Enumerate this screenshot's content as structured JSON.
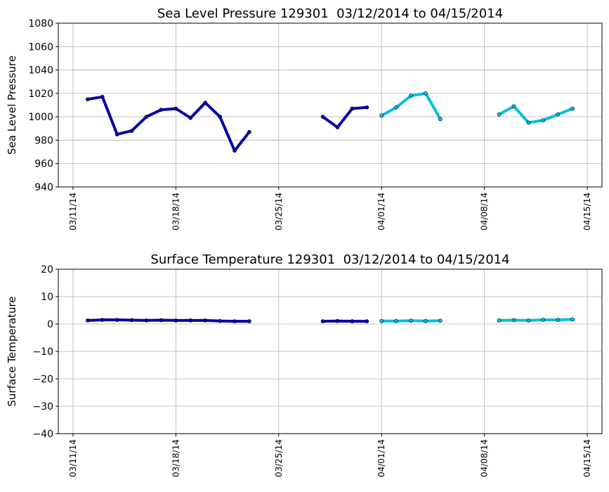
{
  "chart_data": [
    {
      "type": "line",
      "title": "Sea Level Pressure 129301  03/12/2014 to 04/15/2014",
      "y_label": "Sea Level Pressure",
      "x": [
        "2014-03-12",
        "2014-03-13",
        "2014-03-14",
        "2014-03-15",
        "2014-03-16",
        "2014-03-17",
        "2014-03-18",
        "2014-03-19",
        "2014-03-20",
        "2014-03-21",
        "2014-03-22",
        "2014-03-23",
        "2014-03-24",
        "2014-03-25",
        "2014-03-26",
        "2014-03-27",
        "2014-03-28",
        "2014-03-29",
        "2014-03-30",
        "2014-03-31",
        "2014-04-01",
        "2014-04-02",
        "2014-04-03",
        "2014-04-04",
        "2014-04-05",
        "2014-04-06",
        "2014-04-07",
        "2014-04-08",
        "2014-04-09",
        "2014-04-10",
        "2014-04-11",
        "2014-04-12",
        "2014-04-13",
        "2014-04-14"
      ],
      "series": [
        {
          "color": "#0000aa",
          "values": [
            1015,
            1017,
            985,
            988,
            1000,
            1006,
            1007,
            999,
            1012,
            1000,
            971,
            987,
            null,
            null,
            null,
            null,
            1000,
            991,
            1007,
            1008,
            null,
            null,
            null,
            null,
            null,
            null,
            null,
            null,
            null,
            null,
            null,
            null,
            null,
            null
          ]
        },
        {
          "color": "#00bfe0",
          "values": [
            null,
            null,
            null,
            null,
            null,
            null,
            null,
            null,
            null,
            null,
            null,
            null,
            null,
            null,
            null,
            null,
            null,
            null,
            null,
            null,
            1001,
            1008,
            1018,
            1020,
            998,
            null,
            null,
            null,
            1002,
            1009,
            995,
            997,
            1002,
            1007
          ]
        }
      ],
      "xlim": [
        "2014-03-10",
        "2014-04-16"
      ],
      "xticks": [
        {
          "value": "2014-03-11",
          "label": "03/11/14"
        },
        {
          "value": "2014-03-18",
          "label": "03/18/14"
        },
        {
          "value": "2014-03-25",
          "label": "03/25/14"
        },
        {
          "value": "2014-04-01",
          "label": "04/01/14"
        },
        {
          "value": "2014-04-08",
          "label": "04/08/14"
        },
        {
          "value": "2014-04-15",
          "label": "04/15/14"
        }
      ],
      "ylim": [
        940,
        1080
      ],
      "yticks": [
        940,
        960,
        980,
        1000,
        1020,
        1040,
        1060,
        1080
      ],
      "grid": true
    },
    {
      "type": "line",
      "title": "Surface Temperature 129301  03/12/2014 to 04/15/2014",
      "y_label": "Surface Temperature",
      "x": [
        "2014-03-12",
        "2014-03-13",
        "2014-03-14",
        "2014-03-15",
        "2014-03-16",
        "2014-03-17",
        "2014-03-18",
        "2014-03-19",
        "2014-03-20",
        "2014-03-21",
        "2014-03-22",
        "2014-03-23",
        "2014-03-24",
        "2014-03-25",
        "2014-03-26",
        "2014-03-27",
        "2014-03-28",
        "2014-03-29",
        "2014-03-30",
        "2014-03-31",
        "2014-04-01",
        "2014-04-02",
        "2014-04-03",
        "2014-04-04",
        "2014-04-05",
        "2014-04-06",
        "2014-04-07",
        "2014-04-08",
        "2014-04-09",
        "2014-04-10",
        "2014-04-11",
        "2014-04-12",
        "2014-04-13",
        "2014-04-14"
      ],
      "series": [
        {
          "color": "#0000aa",
          "values": [
            1.3,
            1.5,
            1.5,
            1.4,
            1.3,
            1.4,
            1.3,
            1.3,
            1.3,
            1.1,
            1.0,
            1.0,
            null,
            null,
            null,
            null,
            1.0,
            1.1,
            1.0,
            1.0,
            null,
            null,
            null,
            null,
            null,
            null,
            null,
            null,
            null,
            null,
            null,
            null,
            null,
            null
          ]
        },
        {
          "color": "#00bfe0",
          "values": [
            null,
            null,
            null,
            null,
            null,
            null,
            null,
            null,
            null,
            null,
            null,
            null,
            null,
            null,
            null,
            null,
            null,
            null,
            null,
            null,
            1.1,
            1.1,
            1.2,
            1.1,
            1.2,
            null,
            null,
            null,
            1.3,
            1.4,
            1.3,
            1.5,
            1.5,
            1.7
          ]
        }
      ],
      "xlim": [
        "2014-03-10",
        "2014-04-16"
      ],
      "xticks": [
        {
          "value": "2014-03-11",
          "label": "03/11/14"
        },
        {
          "value": "2014-03-18",
          "label": "03/18/14"
        },
        {
          "value": "2014-03-25",
          "label": "03/25/14"
        },
        {
          "value": "2014-04-01",
          "label": "04/01/14"
        },
        {
          "value": "2014-04-08",
          "label": "04/08/14"
        },
        {
          "value": "2014-04-15",
          "label": "04/15/14"
        }
      ],
      "ylim": [
        -40,
        20
      ],
      "yticks": [
        {
          "value": -40,
          "label": "−40"
        },
        {
          "value": -30,
          "label": "−30"
        },
        {
          "value": -20,
          "label": "−20"
        },
        {
          "value": -10,
          "label": "−10"
        },
        0,
        10,
        20
      ],
      "grid": true
    }
  ]
}
